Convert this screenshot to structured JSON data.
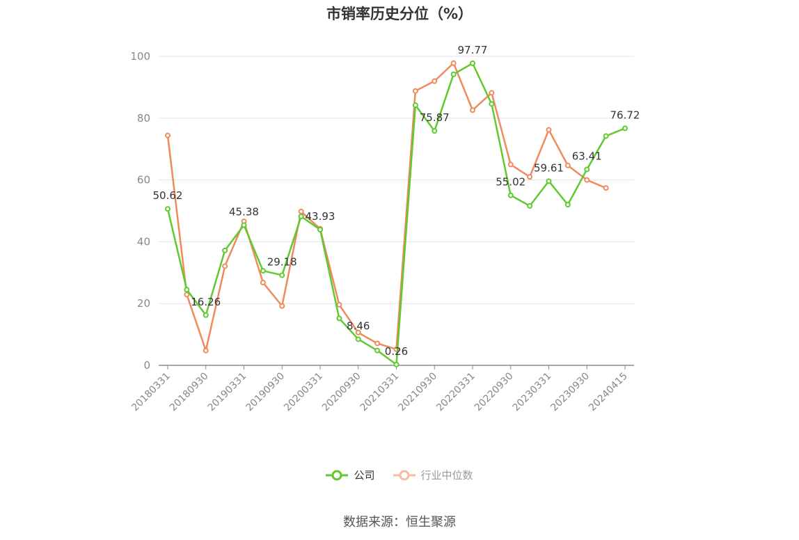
{
  "title": "市销率历史分位（%）",
  "source_label": "数据来源：恒生聚源",
  "chart_data": {
    "type": "line",
    "title": "市销率历史分位（%）",
    "xlabel": "",
    "ylabel": "",
    "ylim": [
      0,
      100
    ],
    "yticks": [
      0,
      20,
      40,
      60,
      80,
      100
    ],
    "grid": true,
    "legend_position": "bottom",
    "x_tick_labels": [
      "20180331",
      "20180930",
      "20190331",
      "20190930",
      "20200331",
      "20200930",
      "20210331",
      "20210930",
      "20220331",
      "20220930",
      "20230331",
      "20230930",
      "20240415"
    ],
    "x_tick_positions": [
      0,
      2,
      4,
      6,
      8,
      10,
      12,
      14,
      16,
      18,
      20,
      22,
      24
    ],
    "series": [
      {
        "name": "公司",
        "color": "#5fc92e",
        "x": [
          0,
          1,
          2,
          3,
          4,
          5,
          6,
          7,
          8,
          9,
          10,
          11,
          12,
          13,
          14,
          15,
          16,
          17,
          18,
          19,
          20,
          21,
          22,
          23,
          24
        ],
        "values": [
          50.62,
          24.5,
          16.26,
          37.2,
          45.38,
          30.6,
          29.18,
          48.2,
          43.93,
          15.2,
          8.46,
          4.8,
          0.26,
          84.2,
          75.87,
          94.2,
          97.77,
          84.6,
          55.02,
          51.6,
          59.61,
          52.0,
          63.41,
          74.2,
          76.72
        ],
        "labels": {
          "0": "50.62",
          "2": "16.26",
          "4": "45.38",
          "6": "29.18",
          "8": "43.93",
          "10": "8.46",
          "12": "0.26",
          "14": "75.87",
          "16": "97.77",
          "18": "55.02",
          "20": "59.61",
          "22": "63.41",
          "24": "76.72"
        }
      },
      {
        "name": "行业中位数",
        "color": "#f08a5d",
        "x": [
          0,
          1,
          2,
          3,
          4,
          5,
          6,
          7,
          8,
          9,
          10,
          11,
          12,
          13,
          14,
          15,
          16,
          17,
          18,
          19,
          20,
          21,
          22,
          23
        ],
        "values": [
          74.4,
          22.9,
          4.8,
          32.1,
          46.6,
          26.8,
          19.2,
          49.8,
          44.2,
          19.6,
          10.6,
          7.1,
          5.2,
          88.8,
          92.0,
          97.8,
          82.6,
          88.2,
          65.0,
          61.0,
          76.2,
          64.7,
          60.0,
          57.4
        ]
      }
    ]
  }
}
